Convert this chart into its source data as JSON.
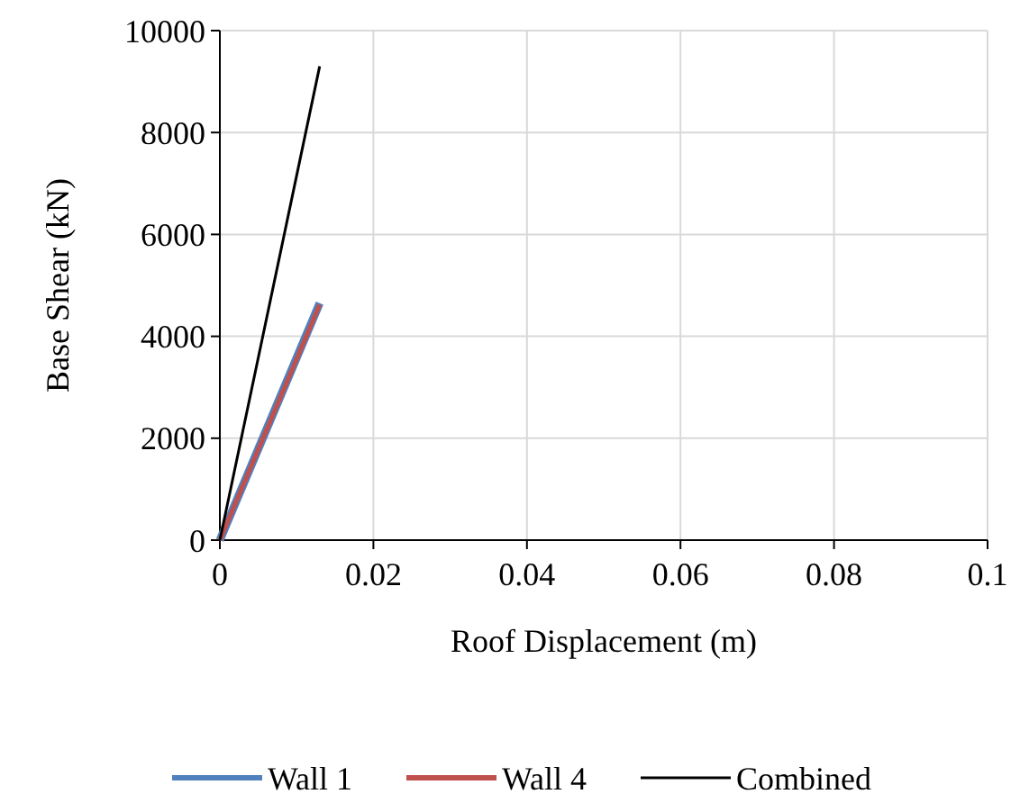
{
  "chart_data": {
    "type": "line",
    "xlabel": "Roof Displacement (m)",
    "ylabel": "Base Shear (kN)",
    "xlim": [
      0,
      0.1
    ],
    "xticks": [
      0,
      0.02,
      0.04,
      0.06,
      0.08,
      0.1
    ],
    "ylim": [
      0,
      10000
    ],
    "yticks": [
      0,
      2000,
      4000,
      6000,
      8000,
      10000
    ],
    "x": [
      0,
      0.013
    ],
    "grid": true,
    "legend": "bottom",
    "marker": "none",
    "line_style": "solid",
    "series": [
      {
        "name": "Wall 1",
        "color": "#4f81bd",
        "values": [
          0,
          4650
        ]
      },
      {
        "name": "Wall 4",
        "color": "#c0504d",
        "values": [
          0,
          4620
        ]
      },
      {
        "name": "Combined",
        "color": "#000000",
        "values": [
          0,
          9300
        ]
      }
    ]
  }
}
